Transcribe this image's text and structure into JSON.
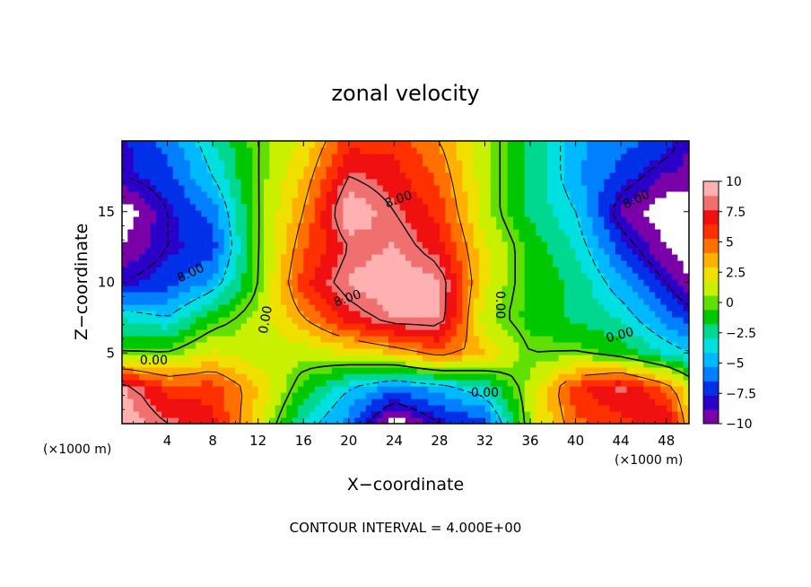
{
  "chart_data": {
    "type": "heatmap",
    "title": "zonal velocity",
    "xlabel": "X−coordinate",
    "ylabel": "Z−coordinate",
    "x_unit_label": "(×1000 m)",
    "x_unit_label_right": "(×1000 m)",
    "xlim": [
      0,
      50
    ],
    "ylim": [
      0,
      20
    ],
    "x_ticks": [
      4,
      8,
      12,
      16,
      20,
      24,
      28,
      32,
      36,
      40,
      44,
      48
    ],
    "x_tick_labels": [
      "4",
      "8",
      "12",
      "16",
      "20",
      "24",
      "28",
      "32",
      "36",
      "40",
      "44",
      "48"
    ],
    "y_ticks": [
      5,
      10,
      15
    ],
    "y_tick_labels": [
      "5",
      "10",
      "15"
    ],
    "colorbar": {
      "min": -10,
      "max": 10,
      "ticks": [
        10,
        7.5,
        5,
        2.5,
        0,
        -2.5,
        -5,
        -7.5,
        -10
      ],
      "tick_labels": [
        "10",
        "7.5",
        "5",
        "2.5",
        "0",
        "−2.5",
        "−5",
        "−7.5",
        "−10"
      ],
      "colors": [
        "#7a00a8",
        "#2a00c8",
        "#0030e8",
        "#0080ff",
        "#00b8ff",
        "#00e0e0",
        "#00d890",
        "#00c800",
        "#60e000",
        "#c8f000",
        "#f0e000",
        "#ffb000",
        "#ff7000",
        "#ff3000",
        "#f01010",
        "#f07070",
        "#ffb0b0"
      ]
    },
    "contour_labels": [
      "8.00",
      "8.00",
      "8.00",
      "8.00",
      "0.00",
      "0.00",
      "0.00",
      "0.00",
      "0.00"
    ],
    "contour_interval": "CONTOUR INTERVAL = 4.000E+00",
    "field_samples": {
      "x": [
        0,
        4,
        8,
        12,
        16,
        20,
        24,
        28,
        32,
        36,
        40,
        44,
        48,
        50
      ],
      "z": [
        0,
        2.5,
        5,
        7.5,
        10,
        12.5,
        15,
        17.5,
        20
      ],
      "values": [
        [
          10,
          8,
          7,
          2,
          -3,
          -6,
          -11,
          -8,
          -7,
          1,
          5,
          6,
          8,
          3
        ],
        [
          9,
          6,
          6,
          3,
          -1,
          -4,
          -6,
          -5,
          -3,
          1,
          6,
          8,
          5,
          2
        ],
        [
          0,
          0,
          2,
          1,
          1,
          2,
          3,
          5,
          3,
          0,
          0,
          -1,
          -3,
          -4
        ],
        [
          -3,
          -4,
          -1,
          1,
          4,
          7,
          9,
          9,
          1,
          -1,
          -2,
          -3,
          -6,
          -7
        ],
        [
          -8,
          -7,
          -5,
          0,
          6,
          9,
          10,
          9,
          2,
          -1,
          -2,
          -5,
          -8,
          -10
        ],
        [
          -10,
          -8,
          -7,
          0,
          5,
          8,
          9,
          7,
          2,
          -1,
          -3,
          -7,
          -10,
          -11
        ],
        [
          -11,
          -8,
          -6,
          0,
          4,
          10,
          8,
          6,
          1,
          -2,
          -4,
          -9,
          -11,
          -11
        ],
        [
          -8,
          -7,
          -4,
          0,
          3,
          8,
          7,
          5,
          1,
          -2,
          -5,
          -7,
          -9,
          -9
        ],
        [
          -8,
          -6,
          -3,
          0,
          2,
          6,
          6,
          4,
          1,
          -2,
          -5,
          -6,
          -7,
          -9
        ]
      ]
    }
  }
}
